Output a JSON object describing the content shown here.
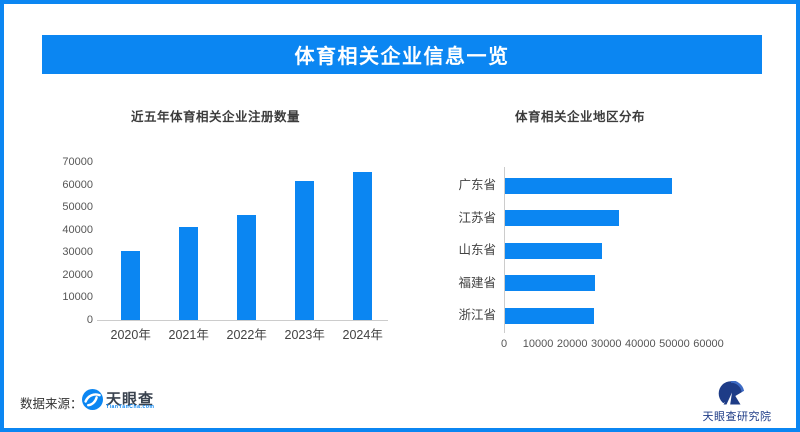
{
  "frame": {
    "accent_color": "#0b86f2",
    "background": "#ffffff"
  },
  "header": {
    "title": "体育相关企业信息一览"
  },
  "chart_data": [
    {
      "type": "bar",
      "orientation": "vertical",
      "title": "近五年体育相关企业注册数量",
      "categories": [
        "2020年",
        "2021年",
        "2022年",
        "2023年",
        "2024年"
      ],
      "values": [
        30500,
        41500,
        46500,
        62000,
        66000
      ],
      "ylim": [
        0,
        70000
      ],
      "yticks": [
        0,
        10000,
        20000,
        30000,
        40000,
        50000,
        60000,
        70000
      ],
      "bar_color": "#0b86f2",
      "grid": false,
      "legend": "none"
    },
    {
      "type": "bar",
      "orientation": "horizontal",
      "title": "体育相关企业地区分布",
      "categories": [
        "广东省",
        "江苏省",
        "山东省",
        "福建省",
        "浙江省"
      ],
      "values": [
        49000,
        33500,
        28500,
        26500,
        26000
      ],
      "xlim": [
        0,
        60000
      ],
      "xticks": [
        0,
        10000,
        20000,
        30000,
        40000,
        50000,
        60000
      ],
      "bar_color": "#0b86f2",
      "grid": false,
      "legend": "none"
    }
  ],
  "footer": {
    "source_label": "数据来源：",
    "tianyancha": {
      "name": "天眼查",
      "domain": "TianYanCha.com"
    },
    "research_institute": "天眼查研究院"
  }
}
